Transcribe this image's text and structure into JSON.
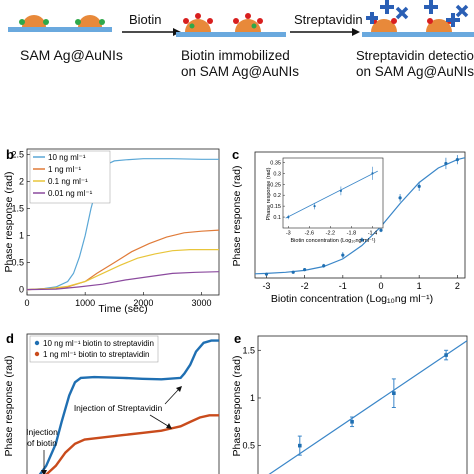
{
  "scheme": {
    "step1_label": "SAM Ag@AuNIs",
    "arrow1_label": "Biotin",
    "step2_line1": "Biotin immobilized",
    "step2_line2": "on SAM Ag@AuNIs",
    "arrow2_label": "Streptavidin",
    "step3_line1": "Streptavidin detection",
    "step3_line2": "on SAM Ag@AuNIs"
  },
  "colors": {
    "np": "#e8893a",
    "np_dark": "#d06a1c",
    "substrate": "#6aa9de",
    "biotin": "#d81f1f",
    "green": "#2ea84a",
    "strep": "#2a5fb5",
    "s10": "#5aa7d6",
    "s1": "#e07b39",
    "s01": "#e8c53a",
    "s001": "#8b4a9e",
    "fit": "#3a86c8",
    "blue_trace": "#1f6fb2",
    "red_trace": "#c94b1c"
  },
  "chart_data": [
    {
      "panel": "b",
      "type": "line",
      "xlabel": "Time (sec)",
      "ylabel": "Phase response (rad)",
      "xlim": [
        0,
        3300
      ],
      "ylim": [
        -0.1,
        2.6
      ],
      "xticks": [
        "0",
        "1000",
        "2000",
        "3000"
      ],
      "yticks": [
        "0",
        "0.5",
        "1",
        "1.5",
        "2",
        "2.5"
      ],
      "legend_position": "top-left",
      "series": [
        {
          "name": "10 ng ml⁻¹",
          "color_key": "s10",
          "x": [
            0,
            300,
            500,
            700,
            800,
            900,
            1000,
            1100,
            1200,
            1300,
            1400,
            1500,
            1700,
            2000,
            2500,
            3000,
            3300
          ],
          "y": [
            0.0,
            0.02,
            0.05,
            0.15,
            0.3,
            0.6,
            1.0,
            1.5,
            1.9,
            2.2,
            2.33,
            2.38,
            2.4,
            2.42,
            2.42,
            2.41,
            2.41
          ]
        },
        {
          "name": "1 ng ml⁻¹",
          "color_key": "s1",
          "x": [
            0,
            400,
            700,
            1000,
            1200,
            1500,
            1800,
            2100,
            2400,
            2700,
            3000,
            3300
          ],
          "y": [
            0.0,
            0.02,
            0.05,
            0.15,
            0.3,
            0.5,
            0.7,
            0.85,
            0.97,
            1.05,
            1.08,
            1.1
          ]
        },
        {
          "name": "0.1 ng ml⁻¹",
          "color_key": "s01",
          "x": [
            0,
            400,
            700,
            1000,
            1300,
            1600,
            1900,
            2200,
            2500,
            2800,
            3100,
            3300
          ],
          "y": [
            0.0,
            0.02,
            0.06,
            0.15,
            0.3,
            0.45,
            0.58,
            0.66,
            0.72,
            0.74,
            0.74,
            0.74
          ]
        },
        {
          "name": "0.01 ng ml⁻¹",
          "color_key": "s001",
          "x": [
            0,
            500,
            900,
            1300,
            1700,
            2100,
            2500,
            2900,
            3300
          ],
          "y": [
            0.0,
            0.01,
            0.05,
            0.1,
            0.18,
            0.24,
            0.3,
            0.32,
            0.33
          ]
        }
      ]
    },
    {
      "panel": "c",
      "type": "scatter",
      "xlabel": "Biotin concentration (Log₁₀ng ml⁻¹)",
      "ylabel": "Phase response (rad)",
      "xlim": [
        -3.3,
        2.2
      ],
      "ylim": [
        0,
        3.3
      ],
      "xticks": [
        "-3",
        "-2",
        "-1",
        "0",
        "1",
        "2"
      ],
      "x": [
        -3,
        -2.3,
        -2,
        -1.5,
        -1,
        -0.5,
        0,
        0.5,
        1,
        1.7,
        2
      ],
      "y": [
        0.1,
        0.15,
        0.22,
        0.32,
        0.6,
        1.0,
        1.25,
        2.1,
        2.4,
        3.0,
        3.1
      ],
      "err": [
        0.03,
        0.03,
        0.04,
        0.05,
        0.08,
        0.06,
        0.05,
        0.1,
        0.12,
        0.15,
        0.12
      ],
      "fit_x": [
        -3.3,
        -3,
        -2.5,
        -2,
        -1.5,
        -1,
        -0.5,
        0,
        0.5,
        1,
        1.5,
        2,
        2.2
      ],
      "fit_y": [
        0.11,
        0.12,
        0.15,
        0.2,
        0.3,
        0.5,
        0.85,
        1.35,
        1.95,
        2.5,
        2.88,
        3.1,
        3.15
      ],
      "inset": {
        "xlabel": "Biotin concentration (Log₁₀ng ml⁻¹)",
        "ylabel": "Phase response (rad)",
        "xlim": [
          -3.1,
          -1.2
        ],
        "ylim": [
          0.05,
          0.37
        ],
        "xticks": [
          "-3",
          "-2.6",
          "-2.2",
          "-1.8",
          "-1.4"
        ],
        "yticks": [
          "0.1",
          "0.15",
          "0.2",
          "0.25",
          "0.3",
          "0.35"
        ],
        "x": [
          -3,
          -2.5,
          -2,
          -1.4
        ],
        "y": [
          0.1,
          0.15,
          0.22,
          0.3
        ],
        "err": [
          0.01,
          0.015,
          0.02,
          0.03
        ]
      }
    },
    {
      "panel": "d",
      "type": "line",
      "ylabel": "Phase response (rad)",
      "xlim": [
        0,
        100
      ],
      "ylim": [
        0,
        3.3
      ],
      "legend_position": "top-left",
      "annotations": [
        "Injection of Streptavidin",
        "Injection",
        "of biotin"
      ],
      "series": [
        {
          "name": "10 ng ml⁻¹ biotin to streptavidin",
          "color_key": "blue_trace",
          "x": [
            5,
            10,
            15,
            18,
            22,
            25,
            28,
            35,
            50,
            60,
            70,
            80,
            82,
            85,
            88,
            92,
            96,
            100
          ],
          "y": [
            0.0,
            0.3,
            0.8,
            1.3,
            1.9,
            2.2,
            2.3,
            2.32,
            2.3,
            2.28,
            2.27,
            2.3,
            2.4,
            2.6,
            2.9,
            3.1,
            3.15,
            3.15
          ]
        },
        {
          "name": "1 ng ml⁻¹ biotin to streptavidin",
          "color_key": "red_trace",
          "x": [
            5,
            10,
            15,
            20,
            25,
            30,
            40,
            50,
            60,
            70,
            75,
            80,
            85,
            90,
            95,
            100
          ],
          "y": [
            0.0,
            0.1,
            0.3,
            0.6,
            0.8,
            0.9,
            0.95,
            1.0,
            1.05,
            1.1,
            1.15,
            1.2,
            1.3,
            1.4,
            1.45,
            1.45
          ]
        }
      ]
    },
    {
      "panel": "e",
      "type": "scatter",
      "ylabel": "Phase response (rad)",
      "xlim": [
        0,
        10
      ],
      "ylim": [
        0.15,
        1.65
      ],
      "yticks": [
        "0.5",
        "1",
        "1.5"
      ],
      "x": [
        2,
        4.5,
        6.5,
        9
      ],
      "y": [
        0.5,
        0.75,
        1.05,
        1.45
      ],
      "err": [
        0.1,
        0.05,
        0.15,
        0.05
      ],
      "fit_x": [
        0,
        10
      ],
      "fit_y": [
        0.12,
        1.6
      ]
    }
  ],
  "panels": {
    "b": "b",
    "c": "c",
    "d": "d",
    "e": "e"
  }
}
